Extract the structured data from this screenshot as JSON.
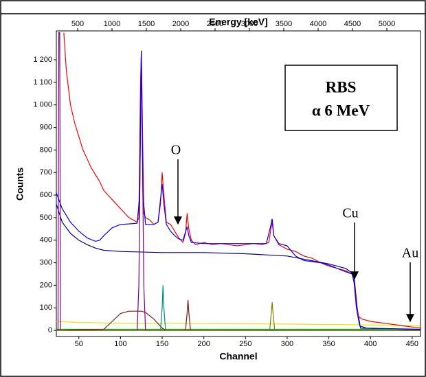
{
  "chart_data": {
    "type": "line",
    "x_label": "Channel",
    "x2_label": "Energy [keV]",
    "y_label": "Counts",
    "box_text": [
      "RBS",
      "α 6 MeV"
    ],
    "annotations": [
      "O",
      "Cu",
      "Au"
    ],
    "xlim": [
      23,
      460
    ],
    "xticks": [
      50,
      100,
      150,
      200,
      250,
      300,
      350,
      400,
      450
    ],
    "x2lim": [
      190,
      5490
    ],
    "x2ticks": [
      500,
      1000,
      1500,
      2000,
      2500,
      3000,
      3500,
      4000,
      4500,
      5000
    ],
    "ylim": [
      -27,
      1328
    ],
    "yticks": [
      0,
      100,
      200,
      300,
      400,
      500,
      600,
      700,
      800,
      900,
      {
        "value": 1000,
        "label": "1 000"
      },
      {
        "value": 1100,
        "label": "1 100"
      },
      {
        "value": 1200,
        "label": "1 200"
      }
    ],
    "series": [
      {
        "color": "#00008b",
        "x": [
          23,
          30,
          40,
          50,
          60,
          70,
          80,
          100,
          150,
          200,
          250,
          300,
          350,
          370,
          380,
          384,
          388,
          460
        ],
        "values": [
          560,
          480,
          430,
          400,
          380,
          365,
          355,
          350,
          345,
          345,
          340,
          330,
          295,
          275,
          250,
          100,
          10,
          2
        ]
      },
      {
        "color": "#e6e600",
        "x": [
          23,
          50,
          100,
          200,
          300,
          380,
          460
        ],
        "values": [
          40,
          35,
          32,
          30,
          28,
          25,
          20
        ]
      },
      {
        "color": "#009900",
        "x": [
          23,
          460
        ],
        "values": [
          5,
          5
        ]
      },
      {
        "color": "#800080",
        "x": [
          23,
          25,
          26,
          27,
          28,
          120,
          122,
          124,
          125,
          126,
          128,
          130,
          460
        ],
        "values": [
          0,
          0,
          1320,
          1320,
          0,
          0,
          200,
          900,
          1240,
          900,
          200,
          0,
          0
        ]
      },
      {
        "color": "#7b1a1a",
        "x": [
          23,
          80,
          90,
          100,
          110,
          120,
          125,
          130,
          140,
          150,
          155,
          178,
          180,
          181,
          182,
          184,
          460
        ],
        "values": [
          0,
          5,
          40,
          75,
          85,
          85,
          85,
          80,
          50,
          10,
          0,
          0,
          80,
          135,
          80,
          0,
          0
        ]
      },
      {
        "color": "#008b8b",
        "x": [
          23,
          148,
          150,
          151,
          152,
          154,
          460
        ],
        "values": [
          0,
          0,
          100,
          200,
          100,
          0,
          0
        ]
      },
      {
        "color": "#808000",
        "x": [
          23,
          279,
          281,
          282,
          283,
          285,
          460
        ],
        "values": [
          0,
          0,
          80,
          125,
          80,
          0,
          0
        ]
      },
      {
        "color": "#ff0000",
        "x": [
          32,
          35,
          40,
          45,
          50,
          55,
          60,
          65,
          70,
          75,
          80,
          85,
          90,
          95,
          100,
          105,
          110,
          115,
          120,
          122,
          124,
          125,
          126,
          128,
          130,
          135,
          140,
          145,
          148,
          150,
          152,
          155,
          160,
          165,
          170,
          175,
          178,
          180,
          182,
          185,
          190,
          200,
          210,
          220,
          230,
          240,
          250,
          260,
          270,
          278,
          280,
          282,
          284,
          290,
          300,
          310,
          320,
          330,
          340,
          350,
          360,
          370,
          378,
          380,
          383,
          386,
          390,
          400,
          410,
          420,
          430,
          440,
          450,
          460
        ],
        "values": [
          1320,
          1150,
          1000,
          920,
          860,
          800,
          760,
          720,
          690,
          660,
          620,
          600,
          580,
          560,
          540,
          520,
          500,
          490,
          480,
          500,
          1100,
          1240,
          1000,
          520,
          500,
          490,
          470,
          480,
          560,
          700,
          600,
          480,
          470,
          440,
          410,
          390,
          430,
          520,
          450,
          400,
          380,
          390,
          380,
          385,
          380,
          375,
          380,
          385,
          380,
          390,
          440,
          480,
          420,
          380,
          360,
          350,
          330,
          320,
          300,
          285,
          275,
          265,
          250,
          220,
          100,
          60,
          50,
          40,
          35,
          30,
          25,
          20,
          15,
          10
        ]
      },
      {
        "color": "#0000ff",
        "x": [
          23,
          30,
          40,
          50,
          60,
          70,
          75,
          80,
          90,
          100,
          110,
          120,
          123,
          125,
          127,
          130,
          140,
          145,
          150,
          152,
          155,
          160,
          165,
          170,
          175,
          180,
          182,
          185,
          200,
          250,
          275,
          280,
          282,
          284,
          290,
          300,
          310,
          320,
          330,
          340,
          350,
          360,
          370,
          378,
          381,
          384,
          387,
          395,
          460
        ],
        "values": [
          610,
          540,
          480,
          440,
          410,
          395,
          400,
          420,
          455,
          470,
          472,
          475,
          600,
          1240,
          600,
          470,
          470,
          480,
          650,
          560,
          470,
          440,
          420,
          405,
          400,
          460,
          420,
          390,
          385,
          385,
          385,
          460,
          495,
          420,
          385,
          375,
          330,
          310,
          305,
          300,
          290,
          275,
          260,
          250,
          200,
          80,
          20,
          10,
          5
        ]
      }
    ]
  }
}
